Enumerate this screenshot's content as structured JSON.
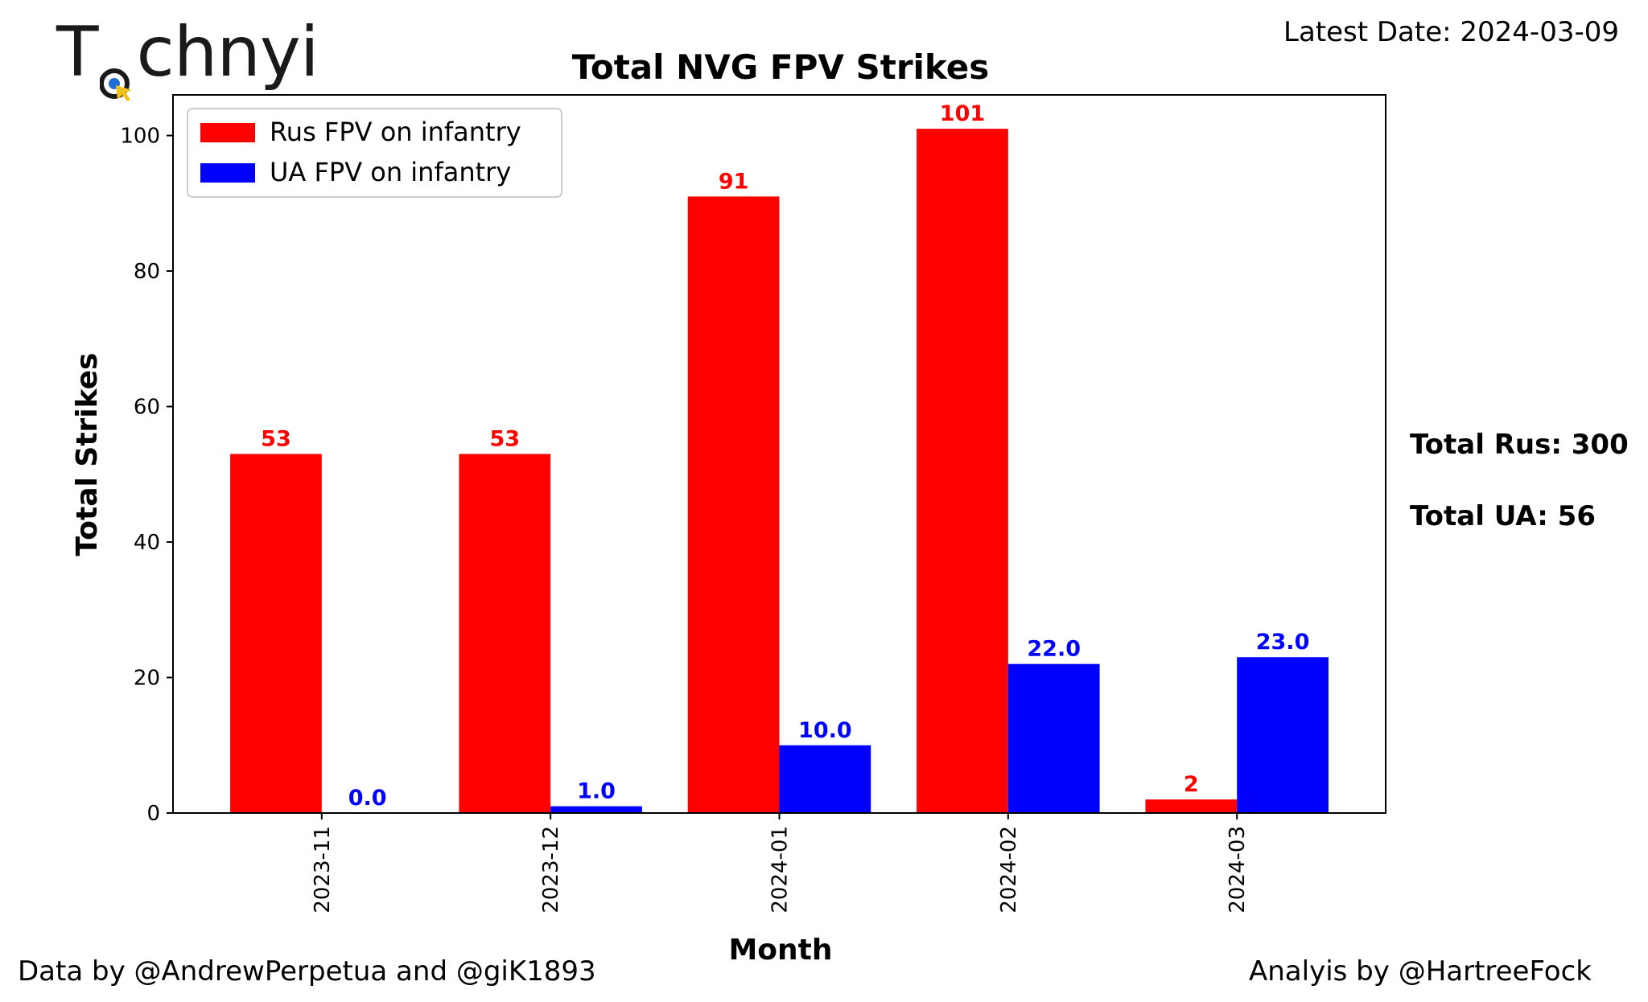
{
  "logo": {
    "text_before": "T",
    "text_after": "chnyi"
  },
  "latest_date": "Latest Date: 2024-03-09",
  "totals": {
    "rus": "Total Rus: 300",
    "ua": "Total UA: 56"
  },
  "footer": {
    "left": "Data by @AndrewPerpetua and @giK1893",
    "right": "Analyis by @HartreeFock"
  },
  "colors": {
    "rus": "#ff0000",
    "ua": "#0000ff",
    "logo_blue": "#1f6fd6",
    "logo_yellow": "#f2c21b"
  },
  "chart_data": {
    "type": "bar",
    "title": "Total NVG FPV Strikes",
    "xlabel": "Month",
    "ylabel": "Total Strikes",
    "categories": [
      "2023-11",
      "2023-12",
      "2024-01",
      "2024-02",
      "2024-03"
    ],
    "series": [
      {
        "name": "Rus FPV on infantry",
        "color": "#ff0000",
        "values": [
          53,
          53,
          91,
          101,
          2
        ],
        "labels": [
          "53",
          "53",
          "91",
          "101",
          "2"
        ]
      },
      {
        "name": "UA FPV on infantry",
        "color": "#0000ff",
        "values": [
          0,
          1,
          10,
          22,
          23
        ],
        "labels": [
          "0.0",
          "1.0",
          "10.0",
          "22.0",
          "23.0"
        ]
      }
    ],
    "ylim": [
      0,
      106
    ],
    "yticks": [
      0,
      20,
      40,
      60,
      80,
      100
    ],
    "legend": "top-left",
    "grid": false
  }
}
